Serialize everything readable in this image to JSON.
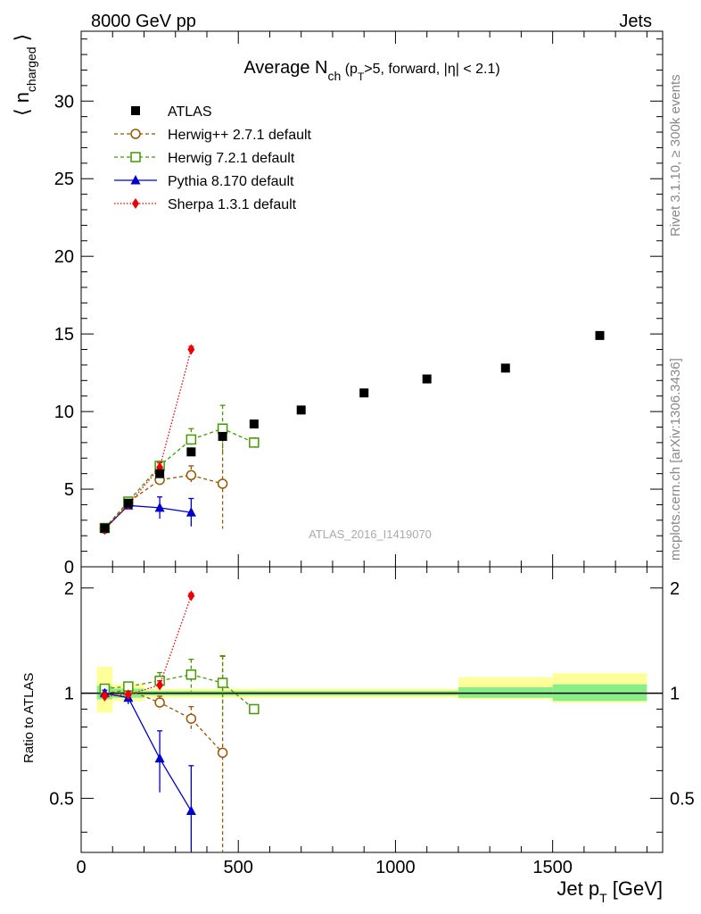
{
  "header": {
    "left": "8000 GeV pp",
    "right": "Jets"
  },
  "side_labels": {
    "rivet": "Rivet 3.1.10, ≥ 300k events",
    "mcplots": "mcplots.cern.ch [arXiv:1306.3436]"
  },
  "chart_data": [
    {
      "type": "scatter",
      "title": {
        "main": "Average N",
        "sub": "ch",
        "rest_a": " (p",
        "rest_sub": "T",
        "rest_b": ">5, forward, |η| < 2.1)"
      },
      "ylabel": {
        "pre": "⟨ n",
        "sub": "charged",
        "post": " ⟩"
      },
      "analysis_tag": "ATLAS_2016_I1419070",
      "xlim": [
        0,
        1850
      ],
      "ylim": [
        0,
        34.5
      ],
      "y_ticks": [
        0,
        5,
        10,
        15,
        20,
        25,
        30
      ],
      "y_tick_labels": [
        "0",
        "5",
        "10",
        "15",
        "20",
        "25",
        "30"
      ],
      "legend_position": "top-left",
      "series": [
        {
          "name": "ATLAS",
          "color": "#000000",
          "marker": "filled-square",
          "line": "none",
          "x": [
            75,
            150,
            250,
            350,
            450,
            550,
            700,
            900,
            1100,
            1350,
            1650
          ],
          "y": [
            2.5,
            4.1,
            6.0,
            7.4,
            8.4,
            9.2,
            10.1,
            11.2,
            12.1,
            12.8,
            14.9
          ]
        },
        {
          "name": "Herwig++ 2.7.1 default",
          "color": "#995500",
          "marker": "open-circle",
          "line": "dashed",
          "x": [
            75,
            150,
            250,
            350,
            450
          ],
          "y": [
            2.45,
            4.15,
            5.6,
            5.9,
            5.35
          ],
          "err": [
            0.1,
            0.15,
            0.3,
            0.6,
            2.9
          ]
        },
        {
          "name": "Herwig 7.2.1 default",
          "color": "#449900",
          "marker": "open-square",
          "line": "dashed",
          "x": [
            75,
            150,
            250,
            350,
            450,
            550
          ],
          "y": [
            2.5,
            4.2,
            6.5,
            8.2,
            8.9,
            8.0
          ],
          "err": [
            0.1,
            0.15,
            0.3,
            0.7,
            1.5,
            0.3
          ]
        },
        {
          "name": "Pythia 8.170 default",
          "color": "#0000cc",
          "marker": "filled-triangle",
          "line": "solid",
          "x": [
            75,
            150,
            250,
            350
          ],
          "y": [
            2.45,
            3.95,
            3.8,
            3.5
          ],
          "err": [
            0.1,
            0.2,
            0.7,
            0.9
          ]
        },
        {
          "name": "Sherpa 1.3.1 default",
          "color": "#ee0000",
          "marker": "filled-diamond",
          "line": "dotted",
          "x": [
            75,
            150,
            250,
            350
          ],
          "y": [
            2.4,
            4.0,
            6.4,
            14.0
          ],
          "err": [
            0.05,
            0.1,
            0.3,
            0.2
          ]
        }
      ]
    },
    {
      "type": "scatter",
      "ylabel": "Ratio to ATLAS",
      "xlabel": {
        "main": "Jet p",
        "sub": "T",
        "rest": " [GeV]"
      },
      "xlim": [
        0,
        1850
      ],
      "ylim": [
        0.35,
        2.3
      ],
      "x_ticks": [
        0,
        500,
        1000,
        1500
      ],
      "x_tick_labels": [
        "0",
        "500",
        "1000",
        "1500"
      ],
      "y_ticks": [
        0.5,
        1,
        2
      ],
      "y_tick_labels": [
        "0.5",
        "1",
        "2"
      ],
      "reference_line": 1,
      "uncertainty_bands": [
        {
          "x_from": 50,
          "x_to": 100,
          "inner": [
            0.96,
            1.05
          ],
          "outer": [
            0.88,
            1.19
          ]
        },
        {
          "x_from": 100,
          "x_to": 200,
          "inner": [
            0.97,
            1.03
          ],
          "outer": [
            0.95,
            1.06
          ]
        },
        {
          "x_from": 200,
          "x_to": 1200,
          "inner": [
            0.985,
            1.015
          ],
          "outer": [
            0.97,
            1.03
          ]
        },
        {
          "x_from": 1200,
          "x_to": 1500,
          "inner": [
            0.97,
            1.04
          ],
          "outer": [
            0.96,
            1.11
          ]
        },
        {
          "x_from": 1500,
          "x_to": 1800,
          "inner": [
            0.95,
            1.06
          ],
          "outer": [
            0.94,
            1.14
          ]
        }
      ],
      "series": [
        {
          "name": "Herwig++ 2.7.1 default",
          "color": "#995500",
          "marker": "open-circle",
          "line": "dashed",
          "x": [
            75,
            150,
            250,
            350,
            450
          ],
          "y": [
            1.0,
            1.02,
            0.94,
            0.845,
            0.675
          ],
          "err": [
            0.03,
            0.03,
            0.04,
            0.07,
            0.6
          ]
        },
        {
          "name": "Herwig 7.2.1 default",
          "color": "#449900",
          "marker": "open-square",
          "line": "dashed",
          "x": [
            75,
            150,
            250,
            350,
            450,
            550
          ],
          "y": [
            1.03,
            1.045,
            1.085,
            1.13,
            1.07,
            0.9
          ],
          "err": [
            0.03,
            0.03,
            0.06,
            0.12,
            0.21,
            0.02
          ]
        },
        {
          "name": "Pythia 8.170 default",
          "color": "#0000cc",
          "marker": "filled-triangle",
          "line": "solid",
          "x": [
            75,
            150,
            250,
            350
          ],
          "y": [
            1.0,
            0.97,
            0.65,
            0.46
          ],
          "err": [
            0.02,
            0.04,
            0.13,
            0.16
          ]
        },
        {
          "name": "Sherpa 1.3.1 default",
          "color": "#ee0000",
          "marker": "filled-diamond",
          "line": "dotted",
          "x": [
            75,
            150,
            250,
            350
          ],
          "y": [
            0.98,
            0.99,
            1.055,
            1.9
          ],
          "err": [
            0.02,
            0.02,
            0.03,
            0.03
          ]
        }
      ]
    }
  ]
}
